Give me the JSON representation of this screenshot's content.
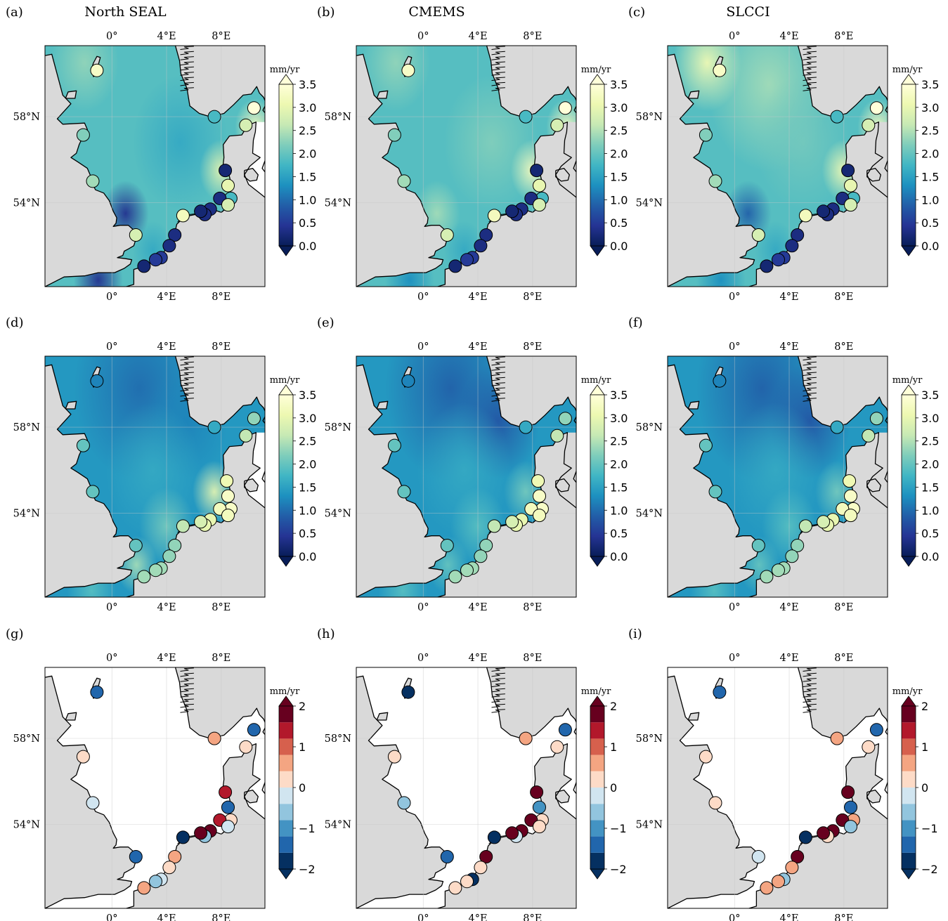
{
  "figure": {
    "column_titles": [
      "North SEAL",
      "CMEMS",
      "SLCCI"
    ],
    "panel_labels": [
      "(a)",
      "(b)",
      "(c)",
      "(d)",
      "(e)",
      "(f)",
      "(g)",
      "(h)",
      "(i)"
    ],
    "lon_ticks": [
      "0°",
      "4°E",
      "8°E"
    ],
    "lat_ticks": [
      "58°N",
      "54°N"
    ],
    "colorbar_unit": "mm/yr",
    "colorbar_rate_ticks": [
      "3.5",
      "3.0",
      "2.5",
      "2.0",
      "1.5",
      "1.0",
      "0.5",
      "0.0"
    ],
    "colorbar_diff_ticks": [
      "2",
      "1",
      "0",
      "−1",
      "−2"
    ],
    "colors": {
      "land": "#d9d9d9",
      "coast": "#000000",
      "ylgnbu_low": "#081d58",
      "ylgnbu_mid": "#41b6c4",
      "ylgnbu_high": "#ffffd9",
      "rdbu_low": "#053061",
      "rdbu_high": "#67001f"
    }
  },
  "chart_data": [
    {
      "type": "heatmap",
      "panel": "(a)",
      "title": "North SEAL",
      "colormap": "YlGnBu_r",
      "clim": [
        0.0,
        3.5
      ],
      "unit": "mm/yr",
      "stations": [
        {
          "lon": -1.1,
          "lat": 60.15,
          "value": 3.3
        },
        {
          "lon": 7.5,
          "lat": 58.0,
          "value": 1.8
        },
        {
          "lon": 10.4,
          "lat": 58.4,
          "value": 3.5
        },
        {
          "lon": 9.8,
          "lat": 57.6,
          "value": 2.8
        },
        {
          "lon": -2.1,
          "lat": 57.15,
          "value": 2.2
        },
        {
          "lon": -1.4,
          "lat": 55.0,
          "value": 2.4
        },
        {
          "lon": 8.3,
          "lat": 55.5,
          "value": 0.2
        },
        {
          "lon": 8.5,
          "lat": 54.8,
          "value": 3.0
        },
        {
          "lon": 8.7,
          "lat": 54.2,
          "value": 1.8
        },
        {
          "lon": 7.9,
          "lat": 54.2,
          "value": 0.3
        },
        {
          "lon": 8.5,
          "lat": 53.9,
          "value": 2.8
        },
        {
          "lon": 7.2,
          "lat": 53.7,
          "value": 0.3
        },
        {
          "lon": 6.8,
          "lat": 53.45,
          "value": 0.3
        },
        {
          "lon": 6.5,
          "lat": 53.6,
          "value": 0.2
        },
        {
          "lon": 5.2,
          "lat": 53.4,
          "value": 3.2
        },
        {
          "lon": 1.75,
          "lat": 52.5,
          "value": 2.8
        },
        {
          "lon": 4.6,
          "lat": 52.5,
          "value": 0.3
        },
        {
          "lon": 4.2,
          "lat": 52.0,
          "value": 0.3
        },
        {
          "lon": 3.6,
          "lat": 51.45,
          "value": 0.5
        },
        {
          "lon": 3.2,
          "lat": 51.35,
          "value": 0.5
        },
        {
          "lon": 2.35,
          "lat": 51.05,
          "value": 0.2
        }
      ]
    },
    {
      "type": "heatmap",
      "panel": "(b)",
      "title": "CMEMS",
      "colormap": "YlGnBu_r",
      "clim": [
        0.0,
        3.5
      ],
      "unit": "mm/yr"
    },
    {
      "type": "heatmap",
      "panel": "(c)",
      "title": "SLCCI",
      "colormap": "YlGnBu_r",
      "clim": [
        0.0,
        3.5
      ],
      "unit": "mm/yr"
    },
    {
      "type": "heatmap",
      "panel": "(d)",
      "colormap": "YlGnBu_r",
      "clim": [
        0.0,
        3.5
      ],
      "unit": "mm/yr",
      "stations": [
        {
          "lon": -1.1,
          "lat": 60.15,
          "value": 1.2
        },
        {
          "lon": 7.5,
          "lat": 58.0,
          "value": 1.6
        },
        {
          "lon": 10.4,
          "lat": 58.4,
          "value": 2.3
        },
        {
          "lon": 9.8,
          "lat": 57.6,
          "value": 2.6
        },
        {
          "lon": -2.1,
          "lat": 57.15,
          "value": 2.0
        },
        {
          "lon": -1.4,
          "lat": 55.0,
          "value": 2.0
        },
        {
          "lon": 8.4,
          "lat": 55.5,
          "value": 3.1
        },
        {
          "lon": 8.5,
          "lat": 54.8,
          "value": 3.3
        },
        {
          "lon": 8.7,
          "lat": 54.2,
          "value": 3.3
        },
        {
          "lon": 7.9,
          "lat": 54.2,
          "value": 3.2
        },
        {
          "lon": 8.5,
          "lat": 53.9,
          "value": 3.2
        },
        {
          "lon": 7.2,
          "lat": 53.7,
          "value": 3.0
        },
        {
          "lon": 6.8,
          "lat": 53.45,
          "value": 3.0
        },
        {
          "lon": 6.5,
          "lat": 53.6,
          "value": 2.8
        },
        {
          "lon": 5.2,
          "lat": 53.4,
          "value": 2.6
        },
        {
          "lon": 1.75,
          "lat": 52.5,
          "value": 2.0
        },
        {
          "lon": 4.6,
          "lat": 52.5,
          "value": 2.3
        },
        {
          "lon": 4.2,
          "lat": 52.0,
          "value": 2.3
        },
        {
          "lon": 3.6,
          "lat": 51.45,
          "value": 2.4
        },
        {
          "lon": 3.2,
          "lat": 51.35,
          "value": 2.4
        },
        {
          "lon": 2.35,
          "lat": 51.05,
          "value": 2.4
        }
      ]
    },
    {
      "type": "heatmap",
      "panel": "(e)",
      "colormap": "YlGnBu_r",
      "clim": [
        0.0,
        3.5
      ],
      "unit": "mm/yr"
    },
    {
      "type": "heatmap",
      "panel": "(f)",
      "colormap": "YlGnBu_r",
      "clim": [
        0.0,
        3.5
      ],
      "unit": "mm/yr"
    },
    {
      "type": "heatmap",
      "panel": "(g)",
      "colormap": "RdBu_r",
      "clim": [
        -2,
        2
      ],
      "unit": "mm/yr",
      "stations": [
        {
          "lon": -1.1,
          "lat": 60.15,
          "value": -1.5
        },
        {
          "lon": 7.5,
          "lat": 58.0,
          "value": 0.4
        },
        {
          "lon": 10.4,
          "lat": 58.4,
          "value": -1.3
        },
        {
          "lon": 9.8,
          "lat": 57.6,
          "value": 0.0
        },
        {
          "lon": -2.1,
          "lat": 57.15,
          "value": 0.0
        },
        {
          "lon": -1.4,
          "lat": 55.0,
          "value": -0.4
        },
        {
          "lon": 8.3,
          "lat": 55.5,
          "value": 1.3
        },
        {
          "lon": 8.5,
          "lat": 54.8,
          "value": -1.5
        },
        {
          "lon": 8.7,
          "lat": 54.2,
          "value": 0.3
        },
        {
          "lon": 7.9,
          "lat": 54.2,
          "value": 1.2
        },
        {
          "lon": 8.5,
          "lat": 53.9,
          "value": -0.2
        },
        {
          "lon": 7.2,
          "lat": 53.7,
          "value": 2.0
        },
        {
          "lon": 6.8,
          "lat": 53.45,
          "value": -0.8
        },
        {
          "lon": 6.5,
          "lat": 53.6,
          "value": 1.8
        },
        {
          "lon": 5.2,
          "lat": 53.4,
          "value": -2.0
        },
        {
          "lon": 1.75,
          "lat": 52.5,
          "value": -1.3
        },
        {
          "lon": 4.6,
          "lat": 52.5,
          "value": 0.6
        },
        {
          "lon": 4.2,
          "lat": 52.0,
          "value": 0.0
        },
        {
          "lon": 3.6,
          "lat": 51.45,
          "value": -0.3
        },
        {
          "lon": 3.2,
          "lat": 51.35,
          "value": -0.5
        },
        {
          "lon": 2.35,
          "lat": 51.05,
          "value": 0.7
        }
      ]
    },
    {
      "type": "heatmap",
      "panel": "(h)",
      "colormap": "RdBu_r",
      "clim": [
        -2,
        2
      ],
      "unit": "mm/yr",
      "stations": [
        {
          "lon": -1.1,
          "lat": 60.15,
          "value": -1.8
        },
        {
          "lon": 7.5,
          "lat": 58.0,
          "value": 0.6
        },
        {
          "lon": 10.4,
          "lat": 58.4,
          "value": -1.3
        },
        {
          "lon": 9.8,
          "lat": 57.6,
          "value": 0.3
        },
        {
          "lon": -2.1,
          "lat": 57.15,
          "value": 0.0
        },
        {
          "lon": -1.4,
          "lat": 55.0,
          "value": -0.5
        },
        {
          "lon": 8.3,
          "lat": 55.5,
          "value": 2.0
        },
        {
          "lon": 8.5,
          "lat": 54.8,
          "value": -1.2
        },
        {
          "lon": 8.7,
          "lat": 54.2,
          "value": 0.2
        },
        {
          "lon": 7.9,
          "lat": 54.2,
          "value": 2.0
        },
        {
          "lon": 8.5,
          "lat": 53.9,
          "value": 0.0
        },
        {
          "lon": 7.2,
          "lat": 53.7,
          "value": 2.0
        },
        {
          "lon": 6.8,
          "lat": 53.45,
          "value": -0.3
        },
        {
          "lon": 6.5,
          "lat": 53.6,
          "value": 2.0
        },
        {
          "lon": 5.2,
          "lat": 53.4,
          "value": -2.0
        },
        {
          "lon": 1.75,
          "lat": 52.5,
          "value": -1.3
        },
        {
          "lon": 4.6,
          "lat": 52.5,
          "value": 2.0
        },
        {
          "lon": 4.2,
          "lat": 52.0,
          "value": 0.3
        },
        {
          "lon": 3.6,
          "lat": 51.45,
          "value": -2.0
        },
        {
          "lon": 3.2,
          "lat": 51.35,
          "value": 0.3
        },
        {
          "lon": 2.35,
          "lat": 51.05,
          "value": 0.3
        }
      ]
    },
    {
      "type": "heatmap",
      "panel": "(i)",
      "colormap": "RdBu_r",
      "clim": [
        -2,
        2
      ],
      "unit": "mm/yr",
      "stations": [
        {
          "lon": -1.1,
          "lat": 60.15,
          "value": -1.3
        },
        {
          "lon": 7.5,
          "lat": 58.0,
          "value": 0.7
        },
        {
          "lon": 10.4,
          "lat": 58.4,
          "value": -1.3
        },
        {
          "lon": 9.8,
          "lat": 57.6,
          "value": 0.3
        },
        {
          "lon": -2.1,
          "lat": 57.15,
          "value": 0.3
        },
        {
          "lon": -1.4,
          "lat": 55.0,
          "value": 0.0
        },
        {
          "lon": 8.3,
          "lat": 55.5,
          "value": 2.0
        },
        {
          "lon": 8.5,
          "lat": 54.8,
          "value": -1.3
        },
        {
          "lon": 8.7,
          "lat": 54.2,
          "value": 0.7
        },
        {
          "lon": 7.9,
          "lat": 54.2,
          "value": 2.0
        },
        {
          "lon": 8.5,
          "lat": 53.9,
          "value": -0.8
        },
        {
          "lon": 7.2,
          "lat": 53.7,
          "value": 2.0
        },
        {
          "lon": 6.8,
          "lat": 53.45,
          "value": 0.0
        },
        {
          "lon": 6.5,
          "lat": 53.6,
          "value": 2.0
        },
        {
          "lon": 5.2,
          "lat": 53.4,
          "value": -2.0
        },
        {
          "lon": 1.75,
          "lat": 52.5,
          "value": -0.3
        },
        {
          "lon": 4.6,
          "lat": 52.5,
          "value": 2.0
        },
        {
          "lon": 4.2,
          "lat": 52.0,
          "value": 0.7
        },
        {
          "lon": 3.6,
          "lat": 51.45,
          "value": -0.8
        },
        {
          "lon": 3.2,
          "lat": 51.35,
          "value": 0.6
        },
        {
          "lon": 2.35,
          "lat": 51.05,
          "value": 0.7
        }
      ]
    }
  ]
}
